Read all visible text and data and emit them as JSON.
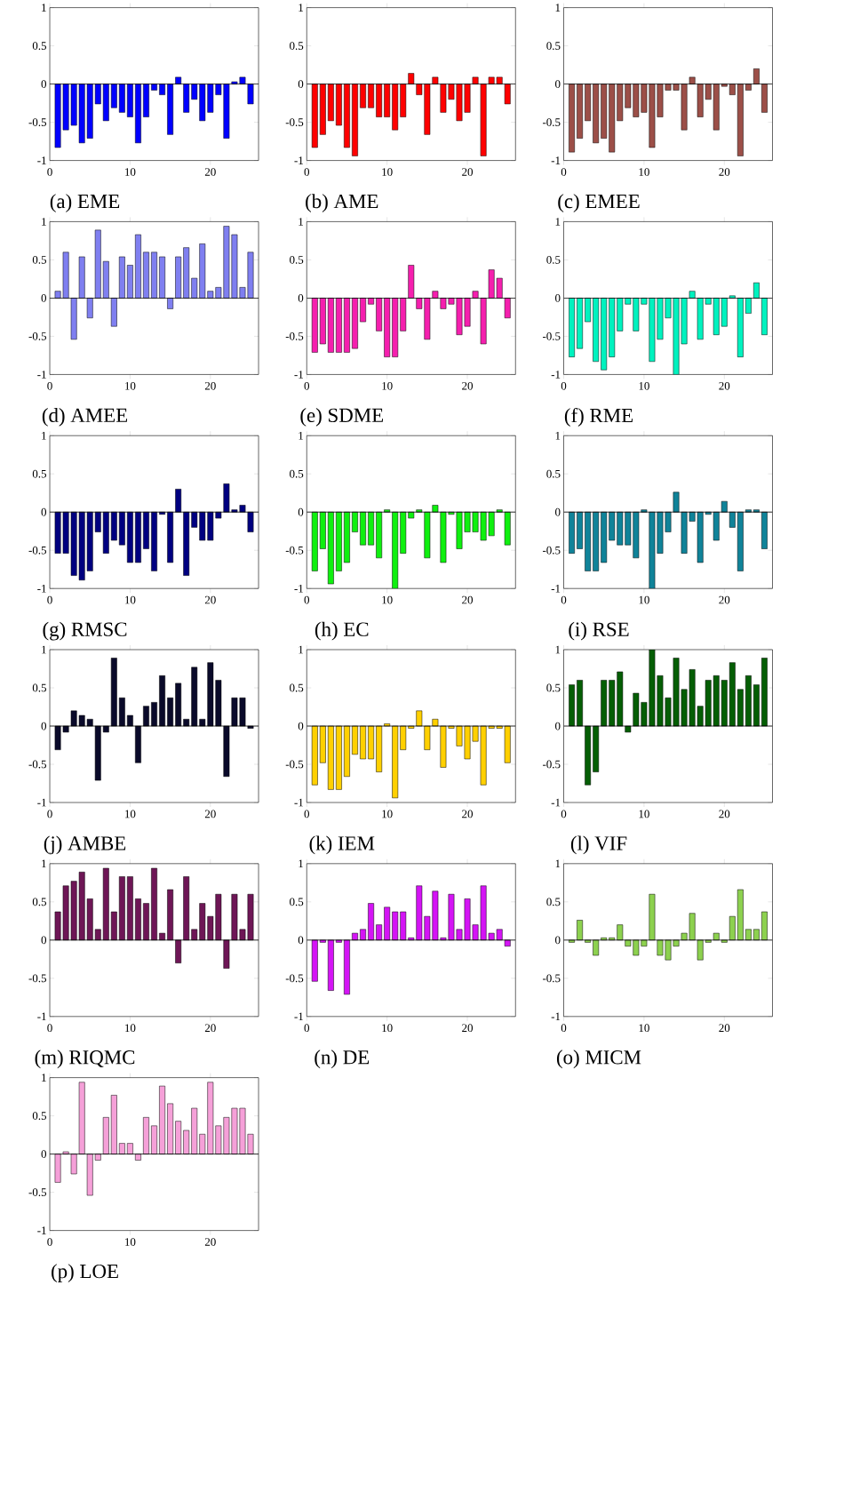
{
  "chart_data": [
    {
      "type": "bar",
      "title": "(a) EME",
      "color": "#0000ff",
      "x": [
        1,
        2,
        3,
        4,
        5,
        6,
        7,
        8,
        9,
        10,
        11,
        12,
        13,
        14,
        15,
        16,
        17,
        18,
        19,
        20,
        21,
        22,
        23,
        24,
        25
      ],
      "xlim": [
        0,
        26
      ],
      "xticks": [
        0,
        10,
        20
      ],
      "ylim": [
        -1,
        1
      ],
      "yticks": [
        -1,
        -0.5,
        0,
        0.5,
        1
      ],
      "values": [
        -0.83,
        -0.6,
        -0.54,
        -0.77,
        -0.71,
        -0.26,
        -0.48,
        -0.31,
        -0.37,
        -0.43,
        -0.77,
        -0.43,
        -0.08,
        -0.14,
        -0.66,
        0.09,
        -0.37,
        -0.2,
        -0.48,
        -0.37,
        -0.14,
        -0.71,
        0.03,
        0.09,
        -0.26
      ]
    },
    {
      "type": "bar",
      "title": "(b) AME",
      "color": "#ff0000",
      "x": [
        1,
        2,
        3,
        4,
        5,
        6,
        7,
        8,
        9,
        10,
        11,
        12,
        13,
        14,
        15,
        16,
        17,
        18,
        19,
        20,
        21,
        22,
        23,
        24,
        25
      ],
      "xlim": [
        0,
        26
      ],
      "xticks": [
        0,
        10,
        20
      ],
      "ylim": [
        -1,
        1
      ],
      "yticks": [
        -1,
        -0.5,
        0,
        0.5,
        1
      ],
      "values": [
        -0.83,
        -0.66,
        -0.48,
        -0.54,
        -0.83,
        -0.94,
        -0.31,
        -0.31,
        -0.43,
        -0.43,
        -0.6,
        -0.43,
        0.14,
        -0.14,
        -0.66,
        0.09,
        -0.37,
        -0.2,
        -0.48,
        -0.37,
        0.09,
        -0.94,
        0.09,
        0.09,
        -0.26
      ]
    },
    {
      "type": "bar",
      "title": "(c) EMEE",
      "color": "#9c4f48",
      "x": [
        1,
        2,
        3,
        4,
        5,
        6,
        7,
        8,
        9,
        10,
        11,
        12,
        13,
        14,
        15,
        16,
        17,
        18,
        19,
        20,
        21,
        22,
        23,
        24,
        25
      ],
      "xlim": [
        0,
        26
      ],
      "xticks": [
        0,
        10,
        20
      ],
      "ylim": [
        -1,
        1
      ],
      "yticks": [
        -1,
        -0.5,
        0,
        0.5,
        1
      ],
      "values": [
        -0.89,
        -0.71,
        -0.48,
        -0.77,
        -0.71,
        -0.89,
        -0.48,
        -0.31,
        -0.43,
        -0.37,
        -0.83,
        -0.43,
        -0.08,
        -0.08,
        -0.6,
        0.09,
        -0.43,
        -0.2,
        -0.6,
        -0.03,
        -0.14,
        -0.94,
        -0.08,
        0.2,
        -0.37
      ]
    },
    {
      "type": "bar",
      "title": "(d) AMEE",
      "color": "#7f7ff0",
      "x": [
        1,
        2,
        3,
        4,
        5,
        6,
        7,
        8,
        9,
        10,
        11,
        12,
        13,
        14,
        15,
        16,
        17,
        18,
        19,
        20,
        21,
        22,
        23,
        24,
        25
      ],
      "xlim": [
        0,
        26
      ],
      "xticks": [
        0,
        10,
        20
      ],
      "ylim": [
        -1,
        1
      ],
      "yticks": [
        -1,
        -0.5,
        0,
        0.5,
        1
      ],
      "values": [
        0.09,
        0.6,
        -0.54,
        0.54,
        -0.26,
        0.89,
        0.48,
        -0.37,
        0.54,
        0.43,
        0.83,
        0.6,
        0.6,
        0.54,
        -0.14,
        0.54,
        0.66,
        0.26,
        0.71,
        0.09,
        0.14,
        0.94,
        0.83,
        0.14,
        0.6
      ]
    },
    {
      "type": "bar",
      "title": "(e) SDME",
      "color": "#f51fae",
      "x": [
        1,
        2,
        3,
        4,
        5,
        6,
        7,
        8,
        9,
        10,
        11,
        12,
        13,
        14,
        15,
        16,
        17,
        18,
        19,
        20,
        21,
        22,
        23,
        24,
        25
      ],
      "xlim": [
        0,
        26
      ],
      "xticks": [
        0,
        10,
        20
      ],
      "ylim": [
        -1,
        1
      ],
      "yticks": [
        -1,
        -0.5,
        0,
        0.5,
        1
      ],
      "values": [
        -0.71,
        -0.6,
        -0.71,
        -0.71,
        -0.71,
        -0.66,
        -0.31,
        -0.08,
        -0.43,
        -0.77,
        -0.77,
        -0.43,
        0.43,
        -0.14,
        -0.54,
        0.09,
        -0.14,
        -0.08,
        -0.48,
        -0.37,
        0.09,
        -0.6,
        0.37,
        0.26,
        -0.26
      ]
    },
    {
      "type": "bar",
      "title": "(f) RME",
      "color": "#00f2bf",
      "x": [
        1,
        2,
        3,
        4,
        5,
        6,
        7,
        8,
        9,
        10,
        11,
        12,
        13,
        14,
        15,
        16,
        17,
        18,
        19,
        20,
        21,
        22,
        23,
        24,
        25
      ],
      "xlim": [
        0,
        26
      ],
      "xticks": [
        0,
        10,
        20
      ],
      "ylim": [
        -1,
        1
      ],
      "yticks": [
        -1,
        -0.5,
        0,
        0.5,
        1
      ],
      "values": [
        -0.77,
        -0.66,
        -0.31,
        -0.83,
        -0.94,
        -0.77,
        -0.43,
        -0.08,
        -0.43,
        -0.08,
        -0.83,
        -0.54,
        -0.26,
        -1,
        -0.6,
        0.09,
        -0.54,
        -0.08,
        -0.48,
        -0.37,
        0.03,
        -0.77,
        -0.2,
        0.2,
        -0.48
      ]
    },
    {
      "type": "bar",
      "title": "(g) RMSC",
      "color": "#000080",
      "x": [
        1,
        2,
        3,
        4,
        5,
        6,
        7,
        8,
        9,
        10,
        11,
        12,
        13,
        14,
        15,
        16,
        17,
        18,
        19,
        20,
        21,
        22,
        23,
        24,
        25
      ],
      "xlim": [
        0,
        26
      ],
      "xticks": [
        0,
        10,
        20
      ],
      "ylim": [
        -1,
        1
      ],
      "yticks": [
        -1,
        -0.5,
        0,
        0.5,
        1
      ],
      "values": [
        -0.54,
        -0.54,
        -0.83,
        -0.89,
        -0.77,
        -0.26,
        -0.54,
        -0.37,
        -0.43,
        -0.66,
        -0.66,
        -0.48,
        -0.77,
        -0.03,
        -0.66,
        0.3,
        -0.83,
        -0.2,
        -0.37,
        -0.37,
        -0.08,
        0.37,
        0.03,
        0.09,
        -0.26
      ]
    },
    {
      "type": "bar",
      "title": "(h) EC",
      "color": "#0ff00f",
      "x": [
        1,
        2,
        3,
        4,
        5,
        6,
        7,
        8,
        9,
        10,
        11,
        12,
        13,
        14,
        15,
        16,
        17,
        18,
        19,
        20,
        21,
        22,
        23,
        24,
        25
      ],
      "xlim": [
        0,
        26
      ],
      "xticks": [
        0,
        10,
        20
      ],
      "ylim": [
        -1,
        1
      ],
      "yticks": [
        -1,
        -0.5,
        0,
        0.5,
        1
      ],
      "values": [
        -0.77,
        -0.48,
        -0.94,
        -0.77,
        -0.66,
        -0.26,
        -0.43,
        -0.43,
        -0.6,
        0.03,
        -1,
        -0.54,
        -0.08,
        0.03,
        -0.6,
        0.09,
        -0.66,
        -0.03,
        -0.48,
        -0.26,
        -0.26,
        -0.37,
        -0.31,
        0.03,
        -0.43
      ]
    },
    {
      "type": "bar",
      "title": "(i) RSE",
      "color": "#108399",
      "x": [
        1,
        2,
        3,
        4,
        5,
        6,
        7,
        8,
        9,
        10,
        11,
        12,
        13,
        14,
        15,
        16,
        17,
        18,
        19,
        20,
        21,
        22,
        23,
        24,
        25
      ],
      "xlim": [
        0,
        26
      ],
      "xticks": [
        0,
        10,
        20
      ],
      "ylim": [
        -1,
        1
      ],
      "yticks": [
        -1,
        -0.5,
        0,
        0.5,
        1
      ],
      "values": [
        -0.54,
        -0.48,
        -0.77,
        -0.77,
        -0.66,
        -0.37,
        -0.43,
        -0.43,
        -0.6,
        0.03,
        -1,
        -0.54,
        -0.26,
        0.26,
        -0.54,
        -0.12,
        -0.66,
        -0.03,
        -0.37,
        0.14,
        -0.2,
        -0.77,
        0.03,
        0.03,
        -0.48
      ]
    },
    {
      "type": "bar",
      "title": "(j) AMBE",
      "color": "#0a0a2a",
      "x": [
        1,
        2,
        3,
        4,
        5,
        6,
        7,
        8,
        9,
        10,
        11,
        12,
        13,
        14,
        15,
        16,
        17,
        18,
        19,
        20,
        21,
        22,
        23,
        24,
        25
      ],
      "xlim": [
        0,
        26
      ],
      "xticks": [
        0,
        10,
        20
      ],
      "ylim": [
        -1,
        1
      ],
      "yticks": [
        -1,
        -0.5,
        0,
        0.5,
        1
      ],
      "values": [
        -0.31,
        -0.08,
        0.2,
        0.14,
        0.09,
        -0.71,
        -0.08,
        0.89,
        0.37,
        0.14,
        -0.48,
        0.26,
        0.31,
        0.66,
        0.37,
        0.56,
        0.09,
        0.77,
        0.09,
        0.83,
        0.6,
        -0.66,
        0.37,
        0.37,
        -0.03
      ]
    },
    {
      "type": "bar",
      "title": "(k) IEM",
      "color": "#ffd000",
      "x": [
        1,
        2,
        3,
        4,
        5,
        6,
        7,
        8,
        9,
        10,
        11,
        12,
        13,
        14,
        15,
        16,
        17,
        18,
        19,
        20,
        21,
        22,
        23,
        24,
        25
      ],
      "xlim": [
        0,
        26
      ],
      "xticks": [
        0,
        10,
        20
      ],
      "ylim": [
        -1,
        1
      ],
      "yticks": [
        -1,
        -0.5,
        0,
        0.5,
        1
      ],
      "values": [
        -0.77,
        -0.48,
        -0.83,
        -0.83,
        -0.66,
        -0.37,
        -0.43,
        -0.43,
        -0.6,
        0.03,
        -0.94,
        -0.31,
        -0.03,
        0.2,
        -0.31,
        0.09,
        -0.54,
        -0.03,
        -0.26,
        -0.43,
        -0.2,
        -0.77,
        -0.03,
        -0.03,
        -0.48
      ]
    },
    {
      "type": "bar",
      "title": "(l) VIF",
      "color": "#055e05",
      "x": [
        1,
        2,
        3,
        4,
        5,
        6,
        7,
        8,
        9,
        10,
        11,
        12,
        13,
        14,
        15,
        16,
        17,
        18,
        19,
        20,
        21,
        22,
        23,
        24,
        25
      ],
      "xlim": [
        0,
        26
      ],
      "xticks": [
        0,
        10,
        20
      ],
      "ylim": [
        -1,
        1
      ],
      "yticks": [
        -1,
        -0.5,
        0,
        0.5,
        1
      ],
      "values": [
        0.54,
        0.6,
        -0.77,
        -0.6,
        0.6,
        0.6,
        0.71,
        -0.08,
        0.43,
        0.31,
        1,
        0.66,
        0.37,
        0.89,
        0.48,
        0.74,
        0.26,
        0.6,
        0.66,
        0.6,
        0.83,
        0.48,
        0.66,
        0.54,
        0.89
      ]
    },
    {
      "type": "bar",
      "title": "(m) RIQMC",
      "color": "#6e1656",
      "x": [
        1,
        2,
        3,
        4,
        5,
        6,
        7,
        8,
        9,
        10,
        11,
        12,
        13,
        14,
        15,
        16,
        17,
        18,
        19,
        20,
        21,
        22,
        23,
        24,
        25
      ],
      "xlim": [
        0,
        26
      ],
      "xticks": [
        0,
        10,
        20
      ],
      "ylim": [
        -1,
        1
      ],
      "yticks": [
        -1,
        -0.5,
        0,
        0.5,
        1
      ],
      "values": [
        0.37,
        0.71,
        0.77,
        0.89,
        0.54,
        0.14,
        0.94,
        0.37,
        0.83,
        0.83,
        0.54,
        0.48,
        0.94,
        0.09,
        0.66,
        -0.3,
        0.83,
        0.14,
        0.48,
        0.31,
        0.6,
        -0.37,
        0.6,
        0.14,
        0.6
      ]
    },
    {
      "type": "bar",
      "title": "(n) DE",
      "color": "#d414f5",
      "x": [
        1,
        2,
        3,
        4,
        5,
        6,
        7,
        8,
        9,
        10,
        11,
        12,
        13,
        14,
        15,
        16,
        17,
        18,
        19,
        20,
        21,
        22,
        23,
        24,
        25
      ],
      "xlim": [
        0,
        26
      ],
      "xticks": [
        0,
        10,
        20
      ],
      "ylim": [
        -1,
        1
      ],
      "yticks": [
        -1,
        -0.5,
        0,
        0.5,
        1
      ],
      "values": [
        -0.54,
        -0.03,
        -0.66,
        -0.03,
        -0.71,
        0.09,
        0.14,
        0.48,
        0.2,
        0.43,
        0.37,
        0.37,
        0.03,
        0.71,
        0.31,
        0.64,
        0.03,
        0.6,
        0.14,
        0.54,
        0.2,
        0.71,
        0.09,
        0.14,
        -0.08
      ]
    },
    {
      "type": "bar",
      "title": "(o) MICM",
      "color": "#8dd14f",
      "x": [
        1,
        2,
        3,
        4,
        5,
        6,
        7,
        8,
        9,
        10,
        11,
        12,
        13,
        14,
        15,
        16,
        17,
        18,
        19,
        20,
        21,
        22,
        23,
        24,
        25
      ],
      "xlim": [
        0,
        26
      ],
      "xticks": [
        0,
        10,
        20
      ],
      "ylim": [
        -1,
        1
      ],
      "yticks": [
        -1,
        -0.5,
        0,
        0.5,
        1
      ],
      "values": [
        -0.03,
        0.26,
        -0.03,
        -0.2,
        0.03,
        0.03,
        0.2,
        -0.08,
        -0.2,
        -0.08,
        0.6,
        -0.2,
        -0.26,
        -0.08,
        0.09,
        0.35,
        -0.26,
        -0.03,
        0.09,
        -0.03,
        0.31,
        0.66,
        0.14,
        0.14,
        0.37
      ]
    },
    {
      "type": "bar",
      "title": "(p) LOE",
      "color": "#f5a0d8",
      "x": [
        1,
        2,
        3,
        4,
        5,
        6,
        7,
        8,
        9,
        10,
        11,
        12,
        13,
        14,
        15,
        16,
        17,
        18,
        19,
        20,
        21,
        22,
        23,
        24,
        25
      ],
      "xlim": [
        0,
        26
      ],
      "xticks": [
        0,
        10,
        20
      ],
      "ylim": [
        -1,
        1
      ],
      "yticks": [
        -1,
        -0.5,
        0,
        0.5,
        1
      ],
      "values": [
        -0.37,
        0.03,
        -0.26,
        0.94,
        -0.54,
        -0.08,
        0.48,
        0.77,
        0.14,
        0.14,
        -0.08,
        0.48,
        0.37,
        0.89,
        0.66,
        0.43,
        0.31,
        0.6,
        0.26,
        0.94,
        0.37,
        0.48,
        0.6,
        0.6,
        0.26
      ]
    }
  ]
}
